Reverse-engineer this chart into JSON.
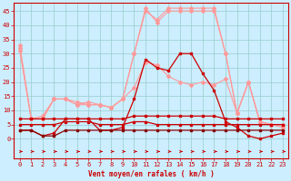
{
  "x": [
    0,
    1,
    2,
    3,
    4,
    5,
    6,
    7,
    8,
    9,
    10,
    11,
    12,
    13,
    14,
    15,
    16,
    17,
    18,
    19,
    20,
    21,
    22,
    23
  ],
  "series": [
    {
      "color": "#ff9999",
      "lw": 0.8,
      "marker": "D",
      "ms": 2.0,
      "y": [
        33,
        7,
        8,
        14,
        14,
        12,
        13,
        12,
        11,
        14,
        18,
        27,
        26,
        22,
        20,
        19,
        20,
        19,
        21,
        9,
        20,
        6,
        5,
        5
      ]
    },
    {
      "color": "#ff9999",
      "lw": 0.8,
      "marker": "D",
      "ms": 2.0,
      "y": [
        32,
        7,
        7,
        14,
        14,
        12,
        12,
        12,
        11,
        14,
        30,
        46,
        41,
        45,
        45,
        45,
        45,
        45,
        30,
        9,
        20,
        6,
        5,
        5
      ]
    },
    {
      "color": "#ff9999",
      "lw": 0.8,
      "marker": "D",
      "ms": 2.0,
      "y": [
        31,
        7,
        7,
        14,
        14,
        13,
        12,
        12,
        11,
        14,
        30,
        45,
        42,
        46,
        46,
        46,
        46,
        46,
        30,
        9,
        20,
        6,
        5,
        4
      ]
    },
    {
      "color": "#cc0000",
      "lw": 0.9,
      "marker": "s",
      "ms": 2.0,
      "y": [
        3,
        3,
        1,
        2,
        7,
        7,
        7,
        3,
        3,
        4,
        14,
        28,
        25,
        24,
        30,
        30,
        23,
        17,
        6,
        4,
        1,
        0,
        1,
        2
      ]
    },
    {
      "color": "#cc0000",
      "lw": 0.9,
      "marker": "s",
      "ms": 2.0,
      "y": [
        7,
        7,
        7,
        7,
        7,
        7,
        7,
        7,
        7,
        7,
        8,
        8,
        8,
        8,
        8,
        8,
        8,
        8,
        7,
        7,
        7,
        7,
        7,
        7
      ]
    },
    {
      "color": "#880000",
      "lw": 0.9,
      "marker": "s",
      "ms": 2.0,
      "y": [
        3,
        3,
        1,
        1,
        3,
        3,
        3,
        3,
        3,
        3,
        3,
        3,
        3,
        3,
        3,
        3,
        3,
        3,
        3,
        3,
        3,
        3,
        3,
        3
      ]
    },
    {
      "color": "#cc0000",
      "lw": 0.9,
      "marker": "s",
      "ms": 2.0,
      "y": [
        5,
        5,
        5,
        5,
        6,
        6,
        6,
        5,
        5,
        5,
        6,
        6,
        5,
        5,
        5,
        5,
        5,
        5,
        5,
        5,
        5,
        5,
        5,
        5
      ]
    }
  ],
  "xlabel": "Vent moyen/en rafales ( km/h )",
  "xlabel_color": "#cc0000",
  "xlabel_fontsize": 5.5,
  "xtick_labels": [
    "0",
    "1",
    "2",
    "3",
    "4",
    "5",
    "6",
    "7",
    "8",
    "9",
    "10",
    "11",
    "12",
    "13",
    "14",
    "15",
    "16",
    "17",
    "18",
    "19",
    "20",
    "21",
    "22",
    "23"
  ],
  "ytick_vals": [
    0,
    5,
    10,
    15,
    20,
    25,
    30,
    35,
    40,
    45
  ],
  "ylim": [
    -7,
    48
  ],
  "xlim": [
    -0.5,
    23.5
  ],
  "bg_color": "#cceeff",
  "grid_color": "#99cccc",
  "tick_color": "#cc0000",
  "tick_fontsize": 5.0,
  "spine_color": "#cc0000",
  "arrow_color": "#cc0000"
}
